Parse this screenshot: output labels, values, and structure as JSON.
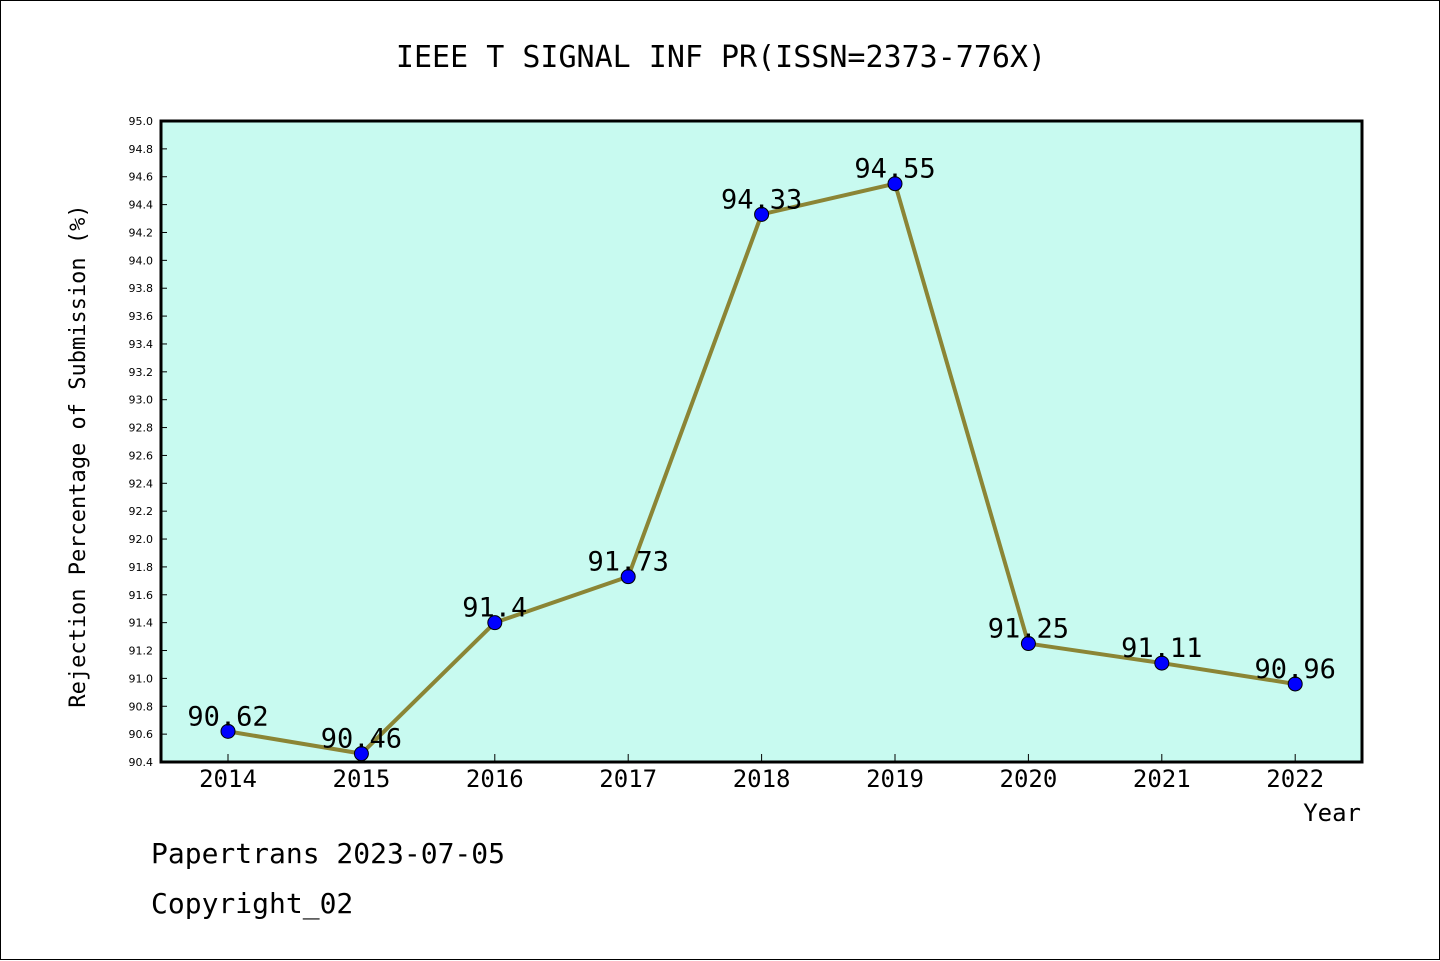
{
  "chart_data": {
    "type": "line",
    "title": "IEEE T SIGNAL INF PR(ISSN=2373-776X)",
    "xlabel": "Year",
    "ylabel": "Rejection Percentage of Submission (%)",
    "categories": [
      "2014",
      "2015",
      "2016",
      "2017",
      "2018",
      "2019",
      "2020",
      "2021",
      "2022"
    ],
    "values": [
      90.62,
      90.46,
      91.4,
      91.73,
      94.33,
      94.55,
      91.25,
      91.11,
      90.96
    ],
    "data_labels": [
      "90.62",
      "90.46",
      "91.4",
      "91.73",
      "94.33",
      "94.55",
      "91.25",
      "91.11",
      "90.96"
    ],
    "ylim": [
      90.4,
      95.0
    ],
    "yticks": [
      "90.4",
      "90.6",
      "90.8",
      "91.0",
      "91.2",
      "91.4",
      "91.6",
      "91.8",
      "92.0",
      "92.2",
      "92.4",
      "92.6",
      "92.8",
      "93.0",
      "93.2",
      "93.4",
      "93.6",
      "93.8",
      "94.0",
      "94.2",
      "94.4",
      "94.6",
      "94.8",
      "95.0"
    ],
    "grid": false,
    "colors": {
      "plot_background": "#c8faf0",
      "line": "#8b8535",
      "marker": "#0000ff"
    }
  },
  "footer": {
    "line1": "Papertrans 2023-07-05",
    "line2": "Copyright_02"
  }
}
